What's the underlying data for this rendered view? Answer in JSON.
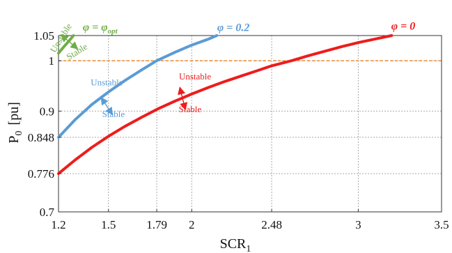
{
  "chart_data": {
    "type": "line",
    "xlabel": "SCR",
    "xlabel_sub": "1",
    "ylabel": "P",
    "ylabel_sub": "0",
    "ylabel_unit": "[pu]",
    "xlim": [
      1.2,
      3.5
    ],
    "ylim": [
      0.7,
      1.05
    ],
    "xticks": [
      1.2,
      1.5,
      1.79,
      2,
      2.48,
      3,
      3.5
    ],
    "xtick_labels": [
      "1.2",
      "1.5",
      "1.79",
      "2",
      "2.48",
      "3",
      "3.5"
    ],
    "yticks": [
      0.7,
      0.776,
      0.848,
      0.9,
      1,
      1.05
    ],
    "ytick_labels": [
      "0.7",
      "0.776",
      "0.848",
      "0.9",
      "1",
      "1.05"
    ],
    "grid": true,
    "reference_line": {
      "y": 1.0,
      "color": "#f08a2c",
      "style": "dashed"
    },
    "series": [
      {
        "name": "φ = 0",
        "color": "#ee1c1c",
        "x": [
          1.2,
          1.3,
          1.4,
          1.5,
          1.6,
          1.7,
          1.8,
          1.9,
          2.0,
          2.1,
          2.2,
          2.3,
          2.4,
          2.48,
          2.6,
          2.7,
          2.8,
          2.9,
          3.0,
          3.1,
          3.2
        ],
        "y": [
          0.776,
          0.803,
          0.828,
          0.85,
          0.87,
          0.888,
          0.905,
          0.92,
          0.934,
          0.947,
          0.959,
          0.97,
          0.981,
          0.99,
          1.0,
          1.01,
          1.019,
          1.028,
          1.036,
          1.043,
          1.05
        ]
      },
      {
        "name": "φ = 0.2",
        "color": "#5b9bd5",
        "x": [
          1.2,
          1.3,
          1.4,
          1.5,
          1.6,
          1.7,
          1.79,
          1.9,
          2.0,
          2.1,
          2.15
        ],
        "y": [
          0.848,
          0.883,
          0.913,
          0.938,
          0.961,
          0.982,
          1.0,
          1.017,
          1.031,
          1.043,
          1.05
        ]
      },
      {
        "name": "φ = φopt",
        "color": "#70ad47",
        "x": [
          1.2,
          1.23,
          1.26,
          1.29
        ],
        "y": [
          1.015,
          1.027,
          1.038,
          1.05
        ]
      }
    ],
    "annotations": [
      {
        "text": "Unstable",
        "color": "#ee1c1c",
        "x": 2.02,
        "y": 0.963
      },
      {
        "text": "Stable",
        "color": "#ee1c1c",
        "x": 1.99,
        "y": 0.898
      },
      {
        "text": "Unstable",
        "color": "#5b9bd5",
        "x": 1.49,
        "y": 0.951
      },
      {
        "text": "Stable",
        "color": "#5b9bd5",
        "x": 1.53,
        "y": 0.888
      },
      {
        "text": "Unstable",
        "color": "#70ad47",
        "x": 1.23,
        "y": 1.042,
        "rotate": -58
      },
      {
        "text": "Stable",
        "color": "#70ad47",
        "x": 1.32,
        "y": 1.013,
        "rotate": -32
      }
    ],
    "curve_labels": [
      {
        "main": "φ = 0",
        "color": "#ee1c1c",
        "x": 3.27,
        "y": 1.062
      },
      {
        "main": "φ = 0.2",
        "color": "#5b9bd5",
        "x": 2.25,
        "y": 1.059
      },
      {
        "main": "φ = φ",
        "sub": "opt",
        "color": "#70ad47",
        "x": 1.45,
        "y": 1.06
      }
    ]
  }
}
